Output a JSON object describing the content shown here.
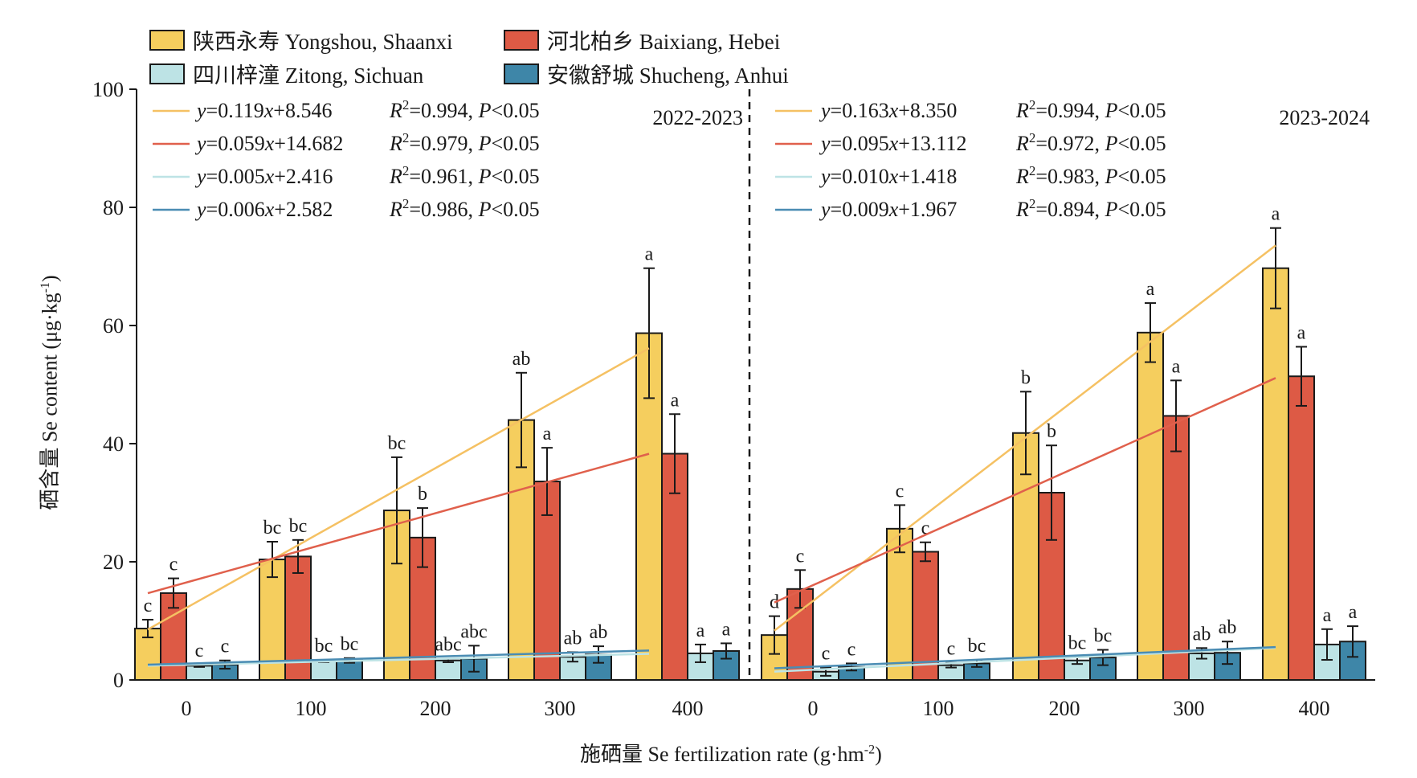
{
  "chart_data": {
    "type": "bar",
    "series": [
      {
        "name": "陕西永寿 Yongshou, Shaanxi",
        "color": "#F5CE5E"
      },
      {
        "name": "河北柏乡 Baixiang, Hebei",
        "color": "#DD5A45"
      },
      {
        "name": "四川梓潼 Zitong, Sichuan",
        "color": "#BDE3E5"
      },
      {
        "name": "安徽舒城 Shucheng, Anhui",
        "color": "#3E86A8"
      }
    ],
    "fit_line_colors": [
      "#F5C163",
      "#E0604C",
      "#BDE3E5",
      "#4A8CB3"
    ],
    "ylabel": "硒含量 Se content (μg·kg",
    "ylabel_sup": "-1",
    "ylabel_tail": ")",
    "xlabel": "施硒量 Se fertilization rate (g·hm",
    "xlabel_sup": "-2",
    "xlabel_tail": ")",
    "ylim": [
      0,
      100
    ],
    "yticks": [
      0,
      20,
      40,
      60,
      80,
      100
    ],
    "categories": [
      "0",
      "100",
      "200",
      "300",
      "400"
    ],
    "panels": [
      {
        "label": "2022-2023",
        "series_values": [
          {
            "values": [
              8.7,
              20.4,
              28.7,
              44.0,
              58.7
            ],
            "errors": [
              1.5,
              3.0,
              9.0,
              8.0,
              11.0
            ],
            "letters": [
              "c",
              "bc",
              "bc",
              "ab",
              "a"
            ]
          },
          {
            "values": [
              14.7,
              20.9,
              24.1,
              33.6,
              38.3
            ],
            "errors": [
              2.5,
              2.8,
              5.0,
              5.7,
              6.7
            ],
            "letters": [
              "c",
              "bc",
              "b",
              "a",
              "a"
            ]
          },
          {
            "values": [
              2.4,
              3.2,
              3.3,
              3.9,
              4.5
            ],
            "errors": [
              0.2,
              0.2,
              0.3,
              0.8,
              1.5
            ],
            "letters": [
              "c",
              "bc",
              "abc",
              "ab",
              "a"
            ]
          },
          {
            "values": [
              2.6,
              3.3,
              3.6,
              4.3,
              4.9
            ],
            "errors": [
              0.7,
              0.4,
              2.2,
              1.4,
              1.3
            ],
            "letters": [
              "c",
              "bc",
              "abc",
              "ab",
              "a"
            ]
          }
        ],
        "equations": [
          {
            "eq_y": "y",
            "eq_rest": "=0.119",
            "eq_x": "x",
            "eq_const": "+8.546",
            "r2": "=0.994, ",
            "p": "<0.05",
            "slope": 0.119,
            "intercept": 8.546
          },
          {
            "eq_y": "y",
            "eq_rest": "=0.059",
            "eq_x": "x",
            "eq_const": "+14.682",
            "r2": "=0.979, ",
            "p": "<0.05",
            "slope": 0.059,
            "intercept": 14.682
          },
          {
            "eq_y": "y",
            "eq_rest": "=0.005",
            "eq_x": "x",
            "eq_const": "+2.416",
            "r2": "=0.961, ",
            "p": "<0.05",
            "slope": 0.005,
            "intercept": 2.416
          },
          {
            "eq_y": "y",
            "eq_rest": "=0.006",
            "eq_x": "x",
            "eq_const": "+2.582",
            "r2": "=0.986, ",
            "p": "<0.05",
            "slope": 0.006,
            "intercept": 2.582
          }
        ]
      },
      {
        "label": "2023-2024",
        "series_values": [
          {
            "values": [
              7.6,
              25.6,
              41.8,
              58.8,
              69.7
            ],
            "errors": [
              3.2,
              4.0,
              7.0,
              5.0,
              6.8
            ],
            "letters": [
              "d",
              "c",
              "b",
              "a",
              "a"
            ]
          },
          {
            "values": [
              15.4,
              21.7,
              31.7,
              44.7,
              51.4
            ],
            "errors": [
              3.2,
              1.6,
              8.0,
              6.0,
              5.0
            ],
            "letters": [
              "c",
              "c",
              "b",
              "a",
              "a"
            ]
          },
          {
            "values": [
              1.4,
              2.5,
              3.3,
              4.5,
              6.0
            ],
            "errors": [
              0.7,
              0.4,
              0.6,
              0.9,
              2.6
            ],
            "letters": [
              "c",
              "c",
              "bc",
              "ab",
              "a"
            ]
          },
          {
            "values": [
              2.2,
              2.8,
              3.8,
              4.6,
              6.5
            ],
            "errors": [
              0.6,
              0.6,
              1.3,
              1.9,
              2.6
            ],
            "letters": [
              "c",
              "bc",
              "bc",
              "ab",
              "a"
            ]
          }
        ],
        "equations": [
          {
            "eq_y": "y",
            "eq_rest": "=0.163",
            "eq_x": "x",
            "eq_const": "+8.350",
            "r2": "=0.994, ",
            "p": "<0.05",
            "slope": 0.163,
            "intercept": 8.35
          },
          {
            "eq_y": "y",
            "eq_rest": "=0.095",
            "eq_x": "x",
            "eq_const": "+13.112",
            "r2": "=0.972, ",
            "p": "<0.05",
            "slope": 0.095,
            "intercept": 13.112
          },
          {
            "eq_y": "y",
            "eq_rest": "=0.010",
            "eq_x": "x",
            "eq_const": "+1.418",
            "r2": "=0.983, ",
            "p": "<0.05",
            "slope": 0.01,
            "intercept": 1.418
          },
          {
            "eq_y": "y",
            "eq_rest": "=0.009",
            "eq_x": "x",
            "eq_const": "+1.967",
            "r2": "=0.894, ",
            "p": "<0.05",
            "slope": 0.009,
            "intercept": 1.967
          }
        ]
      }
    ]
  }
}
